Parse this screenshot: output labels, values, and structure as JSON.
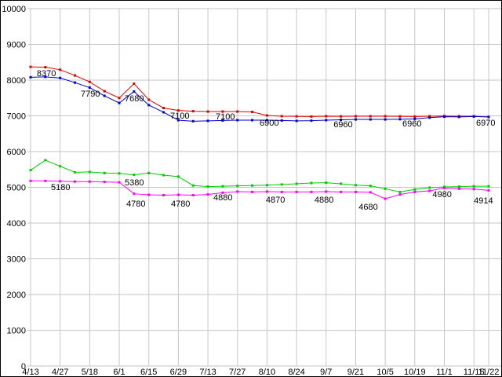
{
  "chart_data": {
    "type": "line",
    "title": "",
    "background": "#ffffff",
    "grid_color": "#c6c6c6",
    "text_color": "#000000",
    "ylim": [
      0,
      10000
    ],
    "y_ticks": [
      0,
      1000,
      2000,
      3000,
      4000,
      5000,
      6000,
      7000,
      8000,
      9000,
      10000
    ],
    "n_points": 32,
    "x_ticks": [
      {
        "label": "4/13",
        "index": 0
      },
      {
        "label": "4/27",
        "index": 2
      },
      {
        "label": "5/18",
        "index": 4
      },
      {
        "label": "6/1",
        "index": 6
      },
      {
        "label": "6/15",
        "index": 8
      },
      {
        "label": "6/29",
        "index": 10
      },
      {
        "label": "7/13",
        "index": 12
      },
      {
        "label": "7/27",
        "index": 14
      },
      {
        "label": "8/10",
        "index": 16
      },
      {
        "label": "8/24",
        "index": 18
      },
      {
        "label": "9/7",
        "index": 20
      },
      {
        "label": "9/21",
        "index": 22
      },
      {
        "label": "10/5",
        "index": 24
      },
      {
        "label": "10/19",
        "index": 26
      },
      {
        "label": "11/1",
        "index": 28
      },
      {
        "label": "11/15",
        "index": 30
      },
      {
        "label": "11/22",
        "index": 31
      }
    ],
    "series": [
      {
        "name": "red",
        "color": "#dd0000",
        "values": [
          8370,
          8360,
          8290,
          8130,
          7950,
          7690,
          7500,
          7900,
          7450,
          7220,
          7150,
          7130,
          7120,
          7120,
          7120,
          7110,
          7010,
          6990,
          6985,
          6980,
          6990,
          6985,
          6990,
          6990,
          6990,
          6985,
          6980,
          6990,
          6995,
          6990,
          6990,
          6970
        ]
      },
      {
        "name": "blue",
        "color": "#0000cc",
        "values": [
          8080,
          8090,
          8060,
          7930,
          7790,
          7560,
          7360,
          7680,
          7300,
          7100,
          6880,
          6850,
          6860,
          6870,
          6880,
          6880,
          6880,
          6870,
          6860,
          6865,
          6880,
          6890,
          6900,
          6900,
          6900,
          6905,
          6915,
          6950,
          6975,
          6970,
          6980,
          6970
        ]
      },
      {
        "name": "green",
        "color": "#00cc00",
        "values": [
          5480,
          5760,
          5590,
          5420,
          5430,
          5400,
          5390,
          5350,
          5400,
          5340,
          5300,
          5050,
          5020,
          5030,
          5040,
          5050,
          5060,
          5080,
          5100,
          5120,
          5130,
          5100,
          5060,
          5040,
          4960,
          4870,
          4940,
          4990,
          5010,
          5020,
          5030,
          5030
        ]
      },
      {
        "name": "magenta",
        "color": "#ff00ff",
        "values": [
          5180,
          5180,
          5170,
          5160,
          5160,
          5150,
          5140,
          4820,
          4790,
          4780,
          4790,
          4780,
          4800,
          4850,
          4880,
          4870,
          4880,
          4870,
          4870,
          4870,
          4880,
          4870,
          4870,
          4860,
          4680,
          4800,
          4870,
          4900,
          4980,
          4960,
          4950,
          4914
        ]
      }
    ],
    "annotations": [
      {
        "text": "8370",
        "i": 0.42,
        "v": 8110
      },
      {
        "text": "7790",
        "i": 3.4,
        "v": 7540
      },
      {
        "text": "7680",
        "i": 6.37,
        "v": 7410
      },
      {
        "text": "7100",
        "i": 9.45,
        "v": 6920
      },
      {
        "text": "7100",
        "i": 12.53,
        "v": 6900
      },
      {
        "text": "6900",
        "i": 15.5,
        "v": 6725
      },
      {
        "text": "6960",
        "i": 20.5,
        "v": 6680
      },
      {
        "text": "6960",
        "i": 25.16,
        "v": 6700
      },
      {
        "text": "6970",
        "i": 30.15,
        "v": 6725
      },
      {
        "text": "5180",
        "i": 1.38,
        "v": 4920
      },
      {
        "text": "5380",
        "i": 6.37,
        "v": 5055
      },
      {
        "text": "4780",
        "i": 6.48,
        "v": 4460
      },
      {
        "text": "4780",
        "i": 9.5,
        "v": 4460
      },
      {
        "text": "4880",
        "i": 12.37,
        "v": 4640
      },
      {
        "text": "4870",
        "i": 15.92,
        "v": 4570
      },
      {
        "text": "4880",
        "i": 19.21,
        "v": 4570
      },
      {
        "text": "4680",
        "i": 22.2,
        "v": 4375
      },
      {
        "text": "4980",
        "i": 27.2,
        "v": 4725
      },
      {
        "text": "4914",
        "i": 30.0,
        "v": 4550
      }
    ]
  }
}
